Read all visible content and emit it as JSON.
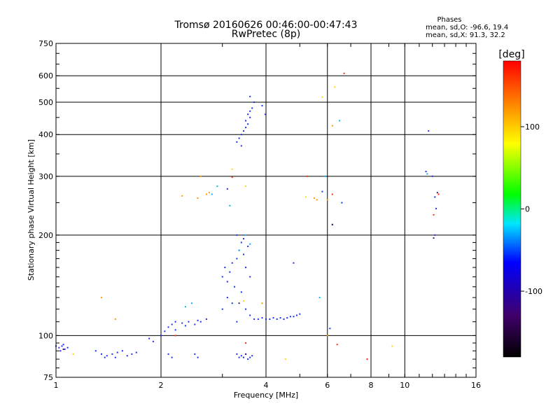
{
  "chart_data": {
    "type": "scatter",
    "title": "Tromsø 20160626 00:46:00-00:47:43",
    "subtitle": "RwPretec (8p)",
    "xlabel": "Frequency [MHz]",
    "ylabel": "Stationary phase Virtual Height [km]",
    "x_scale": "log",
    "y_scale": "log",
    "xlim": [
      1,
      16
    ],
    "ylim": [
      75,
      750
    ],
    "x_ticks": [
      1,
      2,
      4,
      6,
      8,
      10,
      16
    ],
    "y_ticks": [
      75,
      100,
      200,
      300,
      400,
      500,
      600,
      750
    ],
    "grid": true,
    "stats": {
      "heading": "Phases",
      "line_o": "mean, sd,O: -96.6, 19.4",
      "line_x": "mean, sd,X:  91.3, 32.2"
    },
    "colorbar": {
      "label": "[deg]",
      "range": [
        -180,
        180
      ],
      "ticks": [
        100,
        0,
        -100
      ],
      "stops": [
        "#000000",
        "#40006a",
        "#0000ff",
        "#00e6ff",
        "#00ff00",
        "#ffff00",
        "#ff8000",
        "#ff0000"
      ]
    },
    "series": [
      {
        "color": "#1a2ef0",
        "points": [
          [
            1.0,
            93
          ],
          [
            1.02,
            92
          ],
          [
            1.04,
            93
          ],
          [
            1.06,
            91
          ],
          [
            1.08,
            92
          ],
          [
            1.03,
            90
          ],
          [
            1.05,
            94
          ],
          [
            1.3,
            90
          ],
          [
            1.35,
            88
          ],
          [
            1.4,
            87
          ],
          [
            1.45,
            88
          ],
          [
            1.5,
            89
          ],
          [
            1.55,
            90
          ],
          [
            1.6,
            87
          ],
          [
            1.65,
            88
          ],
          [
            1.7,
            89
          ],
          [
            1.48,
            86
          ],
          [
            1.38,
            86
          ],
          [
            1.85,
            98
          ],
          [
            1.9,
            96
          ],
          [
            2.0,
            100
          ],
          [
            2.05,
            103
          ],
          [
            2.1,
            106
          ],
          [
            2.15,
            108
          ],
          [
            2.2,
            110
          ],
          [
            2.3,
            109
          ],
          [
            2.4,
            110
          ],
          [
            2.5,
            108
          ],
          [
            2.6,
            110
          ],
          [
            2.7,
            112
          ],
          [
            2.2,
            104
          ],
          [
            2.35,
            107
          ],
          [
            2.55,
            111
          ],
          [
            2.1,
            88
          ],
          [
            2.15,
            86
          ],
          [
            2.5,
            88
          ],
          [
            2.55,
            86
          ],
          [
            3.0,
            150
          ],
          [
            3.05,
            160
          ],
          [
            3.1,
            145
          ],
          [
            3.15,
            155
          ],
          [
            3.2,
            165
          ],
          [
            3.25,
            140
          ],
          [
            3.3,
            170
          ],
          [
            3.35,
            180
          ],
          [
            3.4,
            190
          ],
          [
            3.45,
            175
          ],
          [
            3.5,
            160
          ],
          [
            3.55,
            185
          ],
          [
            3.6,
            150
          ],
          [
            3.0,
            120
          ],
          [
            3.1,
            130
          ],
          [
            3.2,
            125
          ],
          [
            3.3,
            110
          ],
          [
            3.4,
            135
          ],
          [
            3.5,
            120
          ],
          [
            3.6,
            115
          ],
          [
            3.3,
            200
          ],
          [
            3.45,
            195
          ],
          [
            3.7,
            112
          ],
          [
            3.8,
            112
          ],
          [
            3.9,
            113
          ],
          [
            4.0,
            112
          ],
          [
            4.1,
            112
          ],
          [
            4.2,
            113
          ],
          [
            4.3,
            112
          ],
          [
            4.4,
            113
          ],
          [
            4.5,
            112
          ],
          [
            4.6,
            113
          ],
          [
            4.7,
            114
          ],
          [
            4.8,
            114
          ],
          [
            4.9,
            115
          ],
          [
            5.0,
            116
          ],
          [
            3.3,
            88
          ],
          [
            3.35,
            86
          ],
          [
            3.4,
            87
          ],
          [
            3.45,
            86
          ],
          [
            3.5,
            88
          ],
          [
            3.55,
            85
          ],
          [
            3.6,
            86
          ],
          [
            3.65,
            87
          ],
          [
            3.3,
            380
          ],
          [
            3.35,
            390
          ],
          [
            3.4,
            400
          ],
          [
            3.45,
            410
          ],
          [
            3.5,
            420
          ],
          [
            3.55,
            430
          ],
          [
            3.6,
            450
          ],
          [
            3.65,
            480
          ],
          [
            3.7,
            500
          ],
          [
            3.5,
            440
          ],
          [
            3.6,
            470
          ],
          [
            3.4,
            370
          ],
          [
            3.55,
            460
          ],
          [
            3.6,
            520
          ],
          [
            3.98,
            460
          ],
          [
            11.5,
            310
          ],
          [
            12.0,
            300
          ],
          [
            12.2,
            260
          ],
          [
            12.3,
            240
          ],
          [
            12.2,
            200
          ],
          [
            11.7,
            410
          ],
          [
            6.2,
            215
          ],
          [
            6.1,
            105
          ],
          [
            6.6,
            250
          ],
          [
            7.8,
            85
          ],
          [
            3.1,
            275
          ],
          [
            4.8,
            165
          ],
          [
            5.8,
            270
          ],
          [
            3.9,
            488
          ]
        ]
      },
      {
        "color": "#00b4ff",
        "points": [
          [
            2.35,
            122
          ],
          [
            2.45,
            125
          ],
          [
            3.35,
            180
          ],
          [
            3.5,
            200
          ],
          [
            3.6,
            188
          ],
          [
            5.9,
            300
          ],
          [
            6.5,
            440
          ],
          [
            11.6,
            305
          ],
          [
            5.7,
            130
          ],
          [
            2.9,
            280
          ],
          [
            3.15,
            245
          ],
          [
            2.8,
            265
          ]
        ]
      },
      {
        "color": "#ff9a00",
        "points": [
          [
            1.35,
            130
          ],
          [
            1.48,
            112
          ],
          [
            2.3,
            262
          ],
          [
            2.55,
            258
          ],
          [
            2.7,
            265
          ],
          [
            2.75,
            268
          ],
          [
            5.5,
            258
          ],
          [
            5.6,
            255
          ],
          [
            6.0,
            255
          ],
          [
            3.9,
            125
          ],
          [
            2.6,
            300
          ],
          [
            6.0,
            100
          ],
          [
            6.2,
            425
          ]
        ]
      },
      {
        "color": "#f0e000",
        "points": [
          [
            1.12,
            88
          ],
          [
            3.2,
            315
          ],
          [
            3.5,
            280
          ],
          [
            3.45,
            127
          ],
          [
            4.55,
            85
          ],
          [
            5.2,
            260
          ],
          [
            5.8,
            518
          ],
          [
            6.3,
            555
          ],
          [
            9.2,
            93
          ]
        ]
      },
      {
        "color": "#ff2a00",
        "points": [
          [
            5.25,
            300
          ],
          [
            6.7,
            610
          ],
          [
            6.2,
            265
          ],
          [
            12.1,
            230
          ],
          [
            12.5,
            265
          ],
          [
            6.4,
            94
          ],
          [
            7.8,
            85
          ],
          [
            3.2,
            298
          ],
          [
            3.5,
            95
          ],
          [
            2.2,
            100
          ]
        ]
      },
      {
        "color": "#3a1a6a",
        "points": [
          [
            1.05,
            91
          ],
          [
            3.35,
            125
          ],
          [
            3.5,
            88
          ],
          [
            6.2,
            215
          ],
          [
            12.1,
            196
          ],
          [
            12.4,
            268
          ]
        ]
      }
    ]
  }
}
